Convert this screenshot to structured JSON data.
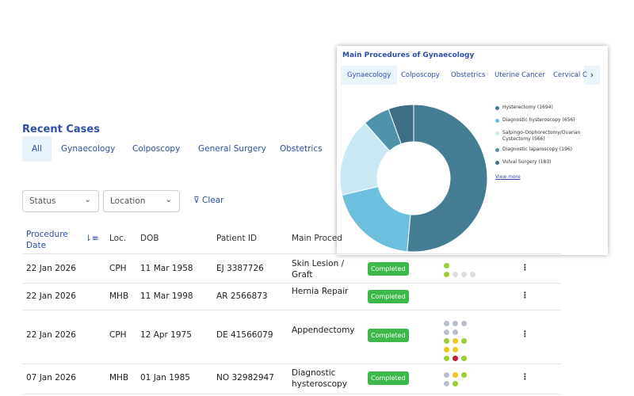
{
  "recent_cases": {
    "title": "Recent Cases",
    "tabs": [
      "All",
      "Gynaecology",
      "Colposcopy",
      "General Surgery",
      "Obstetrics"
    ],
    "filters": {
      "status": "Status",
      "location": "Location",
      "clear": "Clear"
    },
    "table": {
      "headers": [
        "Procedure Date",
        "Loc.",
        "DOB",
        "Patient ID",
        "Main Proced"
      ],
      "rows": [
        [
          "22 Jan 2026",
          "CPH",
          "11 Mar 1958",
          "EJ 3387726",
          "Skin Lesion / Graft",
          "Completed"
        ],
        [
          "22 Jan 2026",
          "MHB",
          "11 Mar 1998",
          "AR 2566873",
          "Hernia Repair",
          "Completed"
        ],
        [
          "22 Jan 2026",
          "CPH",
          "12 Apr 1975",
          "DE 41566079",
          "Appendectomy",
          "Completed"
        ],
        [
          "07 Jan 2026",
          "MHB",
          "01 Jan 1985",
          "NO 32982947",
          "Diagnostic hysteroscopy",
          "Completed"
        ]
      ]
    }
  },
  "card": {
    "title": "Main Procedures of Gynaecology",
    "tabs": [
      "Gynaecology",
      "Colposcopy",
      "Obstetrics",
      "Uterine Cancer",
      "Cervical C"
    ],
    "chart": {
      "type": "pie",
      "categories": [
        "Hysterectomy (1694)",
        "Diagnostic hysteroscopy (656)",
        "Salpingo-Oophorectomy/Ovarian Cystectomy (566)",
        "Diagnostic laparoscopy (196)",
        "Vulval Surgery (183)"
      ],
      "values": [
        1694,
        656,
        566,
        196,
        183
      ],
      "colors": [
        "#437c93",
        "#6cbfdf",
        "#c9e8f3",
        "#4f93ab",
        "#3e6e83"
      ]
    },
    "view_more": "View more"
  }
}
